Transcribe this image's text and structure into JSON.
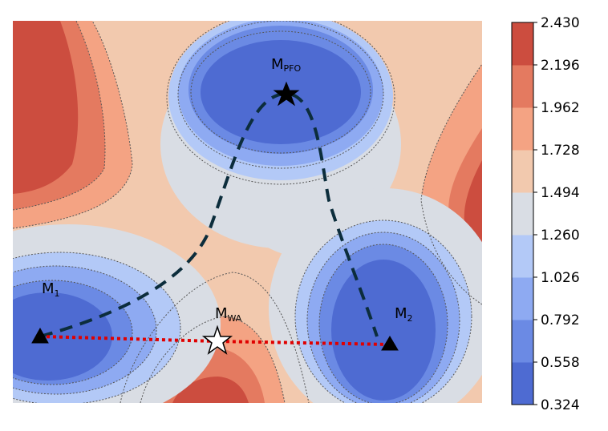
{
  "chart_data": {
    "type": "heatmap",
    "title": "",
    "xlabel": "",
    "ylabel": "",
    "axes_visible": false,
    "grid": false,
    "colormap": "coolwarm",
    "colorbar": {
      "location": "right",
      "ticks": [
        "0.324",
        "0.558",
        "0.792",
        "1.026",
        "1.260",
        "1.494",
        "1.728",
        "1.962",
        "2.196",
        "2.430"
      ],
      "colors": [
        "#4e6bd2",
        "#6b8ae4",
        "#8eaaf2",
        "#b3c9f7",
        "#d9dde4",
        "#f2c9ae",
        "#f4a383",
        "#e47a60",
        "#cc4d3f"
      ]
    },
    "contour_lines": {
      "style": "dotted",
      "color": "#555555"
    },
    "points": [
      {
        "label_main": "M",
        "label_sub": "PFO",
        "marker": "star",
        "marker_color": "#000000"
      },
      {
        "label_main": "M",
        "label_sub": "1",
        "marker": "triangle",
        "marker_color": "#000000"
      },
      {
        "label_main": "M",
        "label_sub": "2",
        "marker": "triangle",
        "marker_color": "#000000"
      },
      {
        "label_main": "M",
        "label_sub": "WA",
        "marker": "star",
        "marker_color": "#ffffff"
      }
    ],
    "paths": [
      {
        "from": "M1",
        "via": "MPFO",
        "to": "M2",
        "style": "dashed",
        "color": "#0c2d3c"
      },
      {
        "from": "M1",
        "via": "MWA",
        "to": "M2",
        "style": "dotted",
        "color": "#e00000"
      }
    ]
  }
}
